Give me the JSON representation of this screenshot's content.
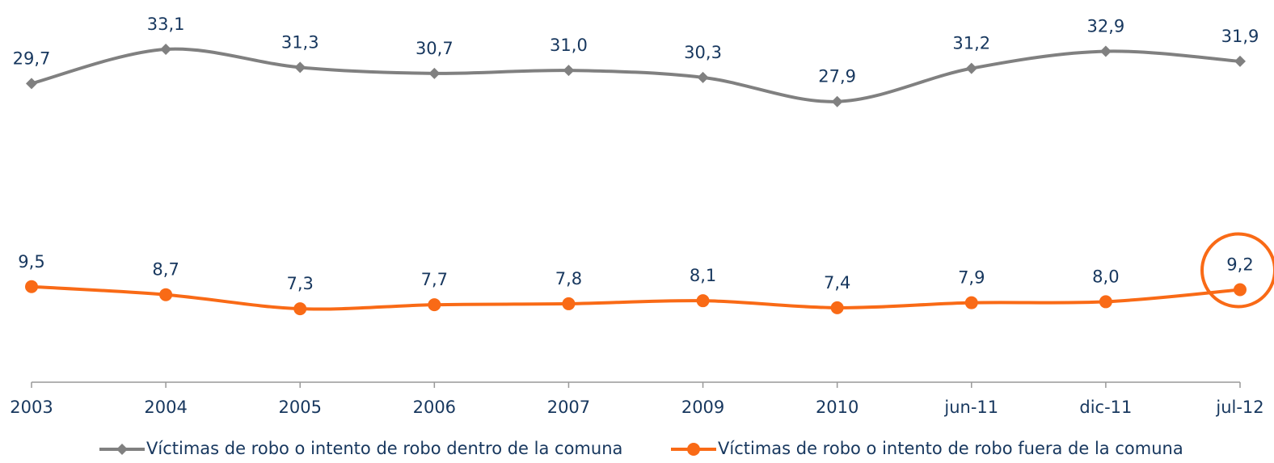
{
  "chart_data": {
    "type": "line",
    "categories": [
      "2003",
      "2004",
      "2005",
      "2006",
      "2007",
      "2009",
      "2010",
      "jun-11",
      "dic-11",
      "jul-12"
    ],
    "series": [
      {
        "name": "Víctimas de robo o intento de robo dentro de la comuna",
        "color": "#808080",
        "marker": "diamond",
        "values": [
          29.7,
          33.1,
          31.3,
          30.7,
          31.0,
          30.3,
          27.9,
          31.2,
          32.9,
          31.9
        ],
        "value_labels": [
          "29,7",
          "33,1",
          "31,3",
          "30,7",
          "31,0",
          "30,3",
          "27,9",
          "31,2",
          "32,9",
          "31,9"
        ]
      },
      {
        "name": "Víctimas de robo o intento de robo fuera de la comuna",
        "color": "#f96a16",
        "marker": "circle",
        "values": [
          9.5,
          8.7,
          7.3,
          7.7,
          7.8,
          8.1,
          7.4,
          7.9,
          8.0,
          9.2
        ],
        "value_labels": [
          "9,5",
          "8,7",
          "7,3",
          "7,7",
          "7,8",
          "8,1",
          "7,4",
          "7,9",
          "8,0",
          "9,2"
        ]
      }
    ],
    "ylim": [
      0,
      38
    ],
    "legend": "bottom"
  }
}
